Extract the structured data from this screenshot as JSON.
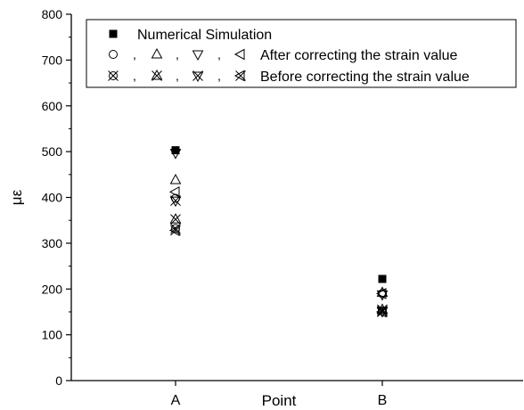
{
  "chart_data": {
    "type": "scatter",
    "xlabel": "Point",
    "ylabel": "με",
    "categories": [
      "A",
      "B"
    ],
    "ylim": [
      0,
      800
    ],
    "yticks": [
      0,
      100,
      200,
      300,
      400,
      500,
      600,
      700,
      800
    ],
    "grid": false,
    "legend_position": "top",
    "legend": {
      "separator": ",",
      "rows": [
        {
          "label": "Numerical Simulation",
          "markers": [
            "filled-square"
          ]
        },
        {
          "label": "After correcting the strain value",
          "markers": [
            "circle",
            "triangle-up",
            "triangle-down",
            "triangle-left"
          ]
        },
        {
          "label": "Before correcting the strain value",
          "markers": [
            "circle-x",
            "triangle-up-x",
            "triangle-down-x",
            "triangle-left-x"
          ]
        }
      ]
    },
    "series": [
      {
        "marker": "filled-square",
        "values": [
          503,
          222
        ]
      },
      {
        "marker": "circle",
        "values": [
          398,
          190
        ]
      },
      {
        "marker": "triangle-up",
        "values": [
          438,
          192
        ]
      },
      {
        "marker": "triangle-down",
        "values": [
          497,
          188
        ]
      },
      {
        "marker": "triangle-left",
        "values": [
          412,
          190
        ]
      },
      {
        "marker": "circle-x",
        "values": [
          332,
          152
        ]
      },
      {
        "marker": "triangle-up-x",
        "values": [
          352,
          155
        ]
      },
      {
        "marker": "triangle-down-x",
        "values": [
          393,
          151
        ]
      },
      {
        "marker": "triangle-left-x",
        "values": [
          328,
          150
        ]
      }
    ]
  }
}
